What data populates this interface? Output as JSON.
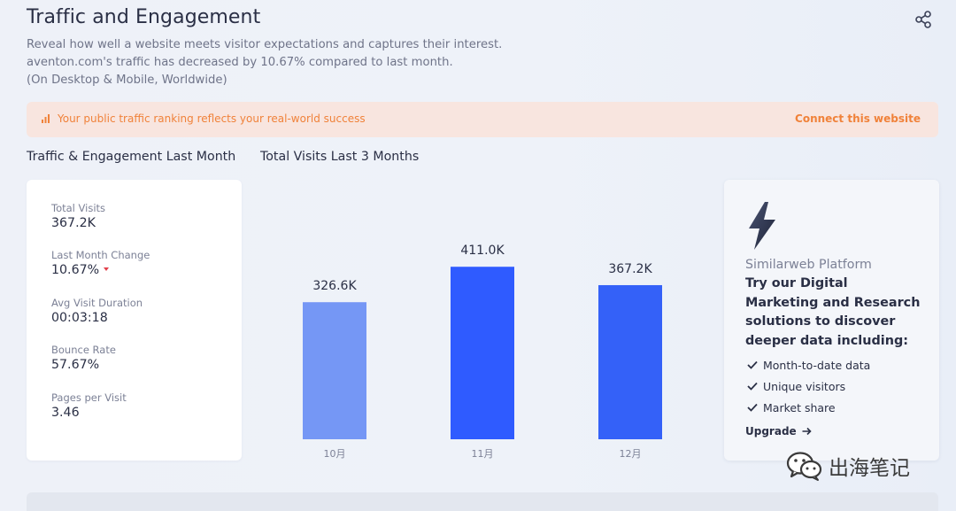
{
  "header": {
    "title": "Traffic and Engagement",
    "description": [
      "Reveal how well a website meets visitor expectations and captures their interest.",
      "aventon.com's traffic has decreased by 10.67% compared to last month.",
      "(On Desktop & Mobile, Worldwide)"
    ]
  },
  "banner": {
    "text": "Your public traffic ranking reflects your real-world success",
    "link": "Connect this website"
  },
  "sections": {
    "metrics_label": "Traffic & Engagement Last Month",
    "chart_label": "Total Visits Last 3 Months"
  },
  "metrics": [
    {
      "label": "Total Visits",
      "value": "367.2K"
    },
    {
      "label": "Last Month Change",
      "value": "10.67%",
      "trend": "down"
    },
    {
      "label": "Avg Visit Duration",
      "value": "00:03:18"
    },
    {
      "label": "Bounce Rate",
      "value": "57.67%"
    },
    {
      "label": "Pages per Visit",
      "value": "3.46"
    }
  ],
  "chart_data": {
    "type": "bar",
    "categories": [
      "10月",
      "11月",
      "12月"
    ],
    "values": [
      326600,
      411000,
      367200
    ],
    "value_labels": [
      "326.6K",
      "411.0K",
      "367.2K"
    ],
    "colors": [
      "#7597f5",
      "#2f5bff",
      "#3461f8"
    ],
    "title": "",
    "xlabel": "",
    "ylabel": "",
    "ylim": [
      0,
      460000
    ],
    "grid": false,
    "legend": "none"
  },
  "promo": {
    "platform": "Similarweb Platform",
    "headline": "Try our Digital Marketing and Research solutions to discover deeper data including:",
    "items": [
      "Month-to-date data",
      "Unique visitors",
      "Market share"
    ],
    "cta": "Upgrade"
  },
  "watermark": {
    "text": "出海笔记"
  },
  "colors": {
    "accent": "#2f5bff",
    "banner_text": "#f0823a",
    "banner_bg": "#f8e5df",
    "negative": "#e2404b"
  }
}
